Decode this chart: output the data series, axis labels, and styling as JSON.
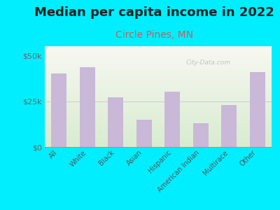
{
  "title": "Median per capita income in 2022",
  "subtitle": "Circle Pines, MN",
  "categories": [
    "All",
    "White",
    "Black",
    "Asian",
    "Hispanic",
    "American Indian",
    "Multirace",
    "Other"
  ],
  "values": [
    40000,
    43500,
    27000,
    15000,
    30000,
    13000,
    23000,
    41000
  ],
  "bar_color": "#c9b8d8",
  "background_outer": "#00eeff",
  "title_fontsize": 13,
  "subtitle_fontsize": 10,
  "subtitle_color": "#c46060",
  "tick_label_color": "#555555",
  "ytick_color": "#666666",
  "ylim": [
    0,
    55000
  ],
  "yticks": [
    0,
    25000,
    50000
  ],
  "watermark": "City-Data.com"
}
